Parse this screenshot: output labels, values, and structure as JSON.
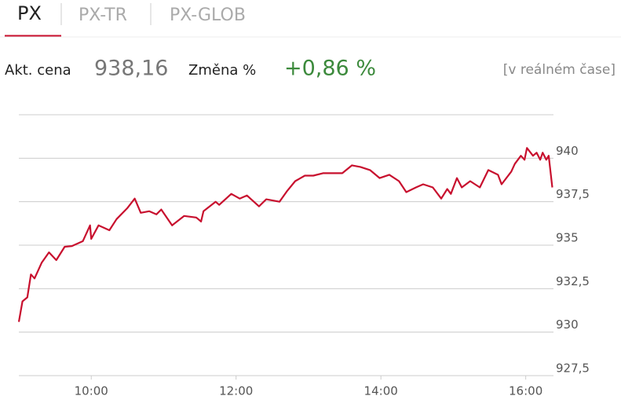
{
  "tabs": [
    "PX",
    "PX-TR",
    "PX-GLOB"
  ],
  "quote": {
    "price_label": "Akt. cena",
    "price": "938,16",
    "change_label": "Změna %",
    "change": "+0,86 %",
    "note": "[v reálném čase]"
  },
  "chart_data": {
    "type": "line",
    "color": "#c8102e",
    "grid": true,
    "x": [
      540,
      543,
      547,
      550,
      553,
      559,
      565,
      571,
      578,
      584,
      593,
      599,
      600,
      606,
      615,
      621,
      630,
      636,
      641,
      648,
      654,
      658,
      667,
      677,
      687,
      691,
      693,
      703,
      706,
      716,
      723,
      729,
      739,
      745,
      756,
      762,
      769,
      777,
      784,
      792,
      800,
      808,
      816,
      823,
      831,
      839,
      847,
      855,
      861,
      869,
      875,
      883,
      890,
      895,
      898,
      903,
      907,
      914,
      922,
      929,
      937,
      940,
      948,
      951,
      956,
      959,
      961,
      966,
      969,
      972,
      974,
      977,
      979,
      982
    ],
    "values": [
      930.59,
      931.77,
      932.0,
      933.32,
      933.09,
      934.0,
      934.59,
      934.14,
      934.91,
      934.95,
      935.23,
      936.14,
      935.36,
      936.14,
      935.86,
      936.5,
      937.14,
      937.68,
      936.86,
      936.95,
      936.77,
      937.05,
      936.14,
      936.68,
      936.59,
      936.36,
      936.95,
      937.5,
      937.32,
      937.95,
      937.68,
      937.86,
      937.23,
      937.64,
      937.5,
      938.09,
      938.68,
      939.0,
      939.0,
      939.14,
      939.14,
      939.14,
      939.59,
      939.5,
      939.32,
      938.86,
      939.05,
      938.68,
      938.05,
      938.32,
      938.5,
      938.32,
      937.68,
      938.23,
      937.95,
      938.86,
      938.32,
      938.68,
      938.32,
      939.32,
      939.05,
      938.5,
      939.23,
      939.68,
      940.14,
      939.91,
      940.59,
      940.14,
      940.32,
      939.91,
      940.32,
      939.91,
      940.14,
      938.32
    ],
    "xlim": [
      540,
      983
    ],
    "xticks": [
      {
        "value": 600,
        "label": "10:00"
      },
      {
        "value": 720,
        "label": "12:00"
      },
      {
        "value": 840,
        "label": "14:00"
      },
      {
        "value": 960,
        "label": "16:00"
      }
    ],
    "ylim": [
      927.5,
      942.5
    ],
    "yticks": [
      {
        "value": 927.5,
        "label": "927,5"
      },
      {
        "value": 930,
        "label": "930"
      },
      {
        "value": 932.5,
        "label": "932,5"
      },
      {
        "value": 935,
        "label": "935"
      },
      {
        "value": 937.5,
        "label": "937,5"
      },
      {
        "value": 940,
        "label": "940"
      }
    ]
  }
}
